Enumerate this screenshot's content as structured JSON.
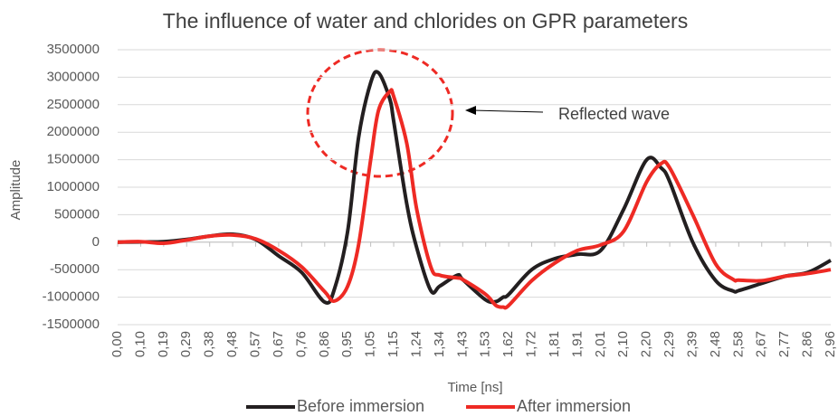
{
  "chart_data": {
    "type": "line",
    "title": "The influence of water and chlorides on GPR parameters",
    "x_label": "Time [ns]",
    "y_label": "Amplitude",
    "x": [
      0,
      0.0955,
      0.191,
      0.2865,
      0.382,
      0.4774,
      0.5729,
      0.6684,
      0.7639,
      0.8594,
      0.9,
      0.9548,
      1.0,
      1.0503,
      1.083,
      1.13,
      1.1458,
      1.2,
      1.2413,
      1.3,
      1.3368,
      1.41,
      1.4323,
      1.5277,
      1.57,
      1.6,
      1.6232,
      1.7187,
      1.8142,
      1.9097,
      2.0052,
      2.1006,
      2.1961,
      2.256,
      2.2916,
      2.3871,
      2.4826,
      2.556,
      2.5781,
      2.6735,
      2.769,
      2.8645,
      2.96
    ],
    "series": [
      {
        "name": "Before immersion",
        "color": "#231f20",
        "values": [
          0,
          5000,
          10000,
          50000,
          110000,
          145000,
          50000,
          -250000,
          -550000,
          -1090000,
          -850000,
          200000,
          1900000,
          2900000,
          3080000,
          2600000,
          2200000,
          700000,
          -100000,
          -880000,
          -800000,
          -600000,
          -680000,
          -1050000,
          -1080000,
          -1000000,
          -950000,
          -500000,
          -300000,
          -220000,
          -150000,
          600000,
          1500000,
          1350000,
          1100000,
          0,
          -700000,
          -890000,
          -880000,
          -750000,
          -620000,
          -550000,
          -330000
        ]
      },
      {
        "name": "After immersion",
        "color": "#ee2a24",
        "values": [
          0,
          10000,
          -20000,
          40000,
          110000,
          130000,
          60000,
          -150000,
          -450000,
          -900000,
          -1070000,
          -800000,
          -50000,
          1500000,
          2400000,
          2740000,
          2650000,
          1800000,
          600000,
          -450000,
          -600000,
          -650000,
          -680000,
          -950000,
          -1150000,
          -1180000,
          -1150000,
          -700000,
          -380000,
          -150000,
          -50000,
          200000,
          1100000,
          1430000,
          1350000,
          500000,
          -400000,
          -680000,
          -690000,
          -700000,
          -620000,
          -570000,
          -500000
        ]
      }
    ],
    "xlim": [
      0,
      2.96
    ],
    "xticks": [
      {
        "value": 0,
        "label": "0,00"
      },
      {
        "value": 0.0955,
        "label": "0,10"
      },
      {
        "value": 0.191,
        "label": "0,19"
      },
      {
        "value": 0.2865,
        "label": "0,29"
      },
      {
        "value": 0.382,
        "label": "0,38"
      },
      {
        "value": 0.4774,
        "label": "0,48"
      },
      {
        "value": 0.5729,
        "label": "0,57"
      },
      {
        "value": 0.6684,
        "label": "0,67"
      },
      {
        "value": 0.7639,
        "label": "0,76"
      },
      {
        "value": 0.8594,
        "label": "0,86"
      },
      {
        "value": 0.9548,
        "label": "0,95"
      },
      {
        "value": 1.0503,
        "label": "1,05"
      },
      {
        "value": 1.1458,
        "label": "1,15"
      },
      {
        "value": 1.2413,
        "label": "1,24"
      },
      {
        "value": 1.3368,
        "label": "1,34"
      },
      {
        "value": 1.4323,
        "label": "1,43"
      },
      {
        "value": 1.5277,
        "label": "1,53"
      },
      {
        "value": 1.6232,
        "label": "1,62"
      },
      {
        "value": 1.7187,
        "label": "1,72"
      },
      {
        "value": 1.8142,
        "label": "1,81"
      },
      {
        "value": 1.9097,
        "label": "1,91"
      },
      {
        "value": 2.0052,
        "label": "2,01"
      },
      {
        "value": 2.1006,
        "label": "2,10"
      },
      {
        "value": 2.1961,
        "label": "2,20"
      },
      {
        "value": 2.2916,
        "label": "2,29"
      },
      {
        "value": 2.3871,
        "label": "2,39"
      },
      {
        "value": 2.4826,
        "label": "2,48"
      },
      {
        "value": 2.5781,
        "label": "2,58"
      },
      {
        "value": 2.6735,
        "label": "2,67"
      },
      {
        "value": 2.769,
        "label": "2,77"
      },
      {
        "value": 2.8645,
        "label": "2,86"
      },
      {
        "value": 2.96,
        "label": "2,96"
      }
    ],
    "ylim": [
      -1500000,
      3500000
    ],
    "yticks": [
      -1500000,
      -1000000,
      -500000,
      0,
      500000,
      1000000,
      1500000,
      2000000,
      2500000,
      3000000,
      3500000
    ],
    "grid": true,
    "annotations": [
      "Reflected wave"
    ]
  }
}
